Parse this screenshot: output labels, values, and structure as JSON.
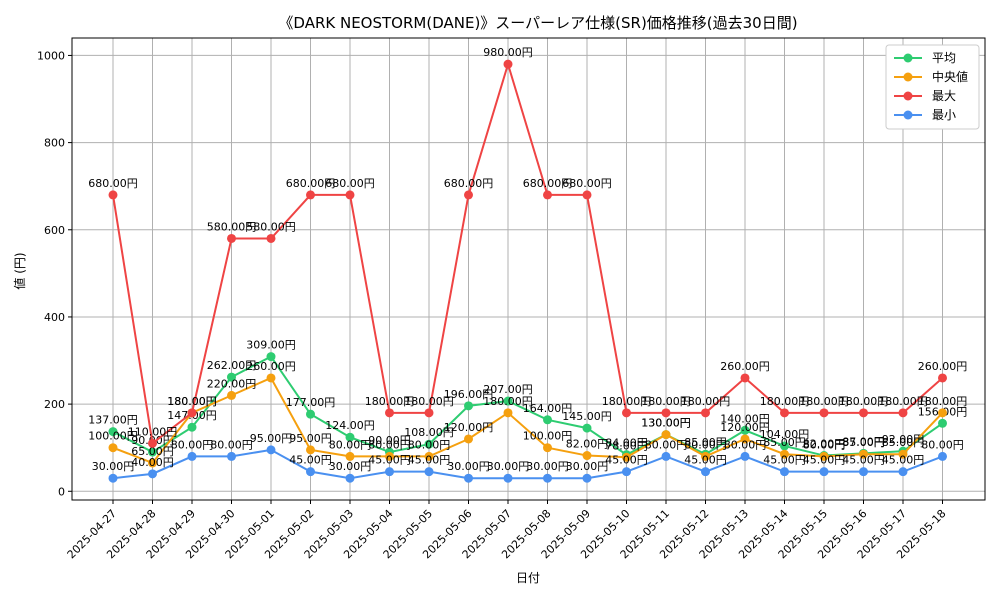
{
  "chart_data": {
    "type": "line",
    "title": "《DARK NEOSTORM(DANE)》スーパーレア仕様(SR)価格推移(過去30日間)",
    "xlabel": "日付",
    "ylabel": "値 (円)",
    "ylim": [
      -20,
      1040
    ],
    "yticks": [
      0,
      200,
      400,
      600,
      800,
      1000
    ],
    "grid": true,
    "legend_position": "top-right",
    "value_suffix": "円",
    "categories": [
      "2025-04-27",
      "2025-04-28",
      "2025-04-29",
      "2025-04-30",
      "2025-05-01",
      "2025-05-02",
      "2025-05-03",
      "2025-05-04",
      "2025-05-05",
      "2025-05-06",
      "2025-05-07",
      "2025-05-08",
      "2025-05-09",
      "2025-05-10",
      "2025-05-11",
      "2025-05-12",
      "2025-05-13",
      "2025-05-14",
      "2025-05-15",
      "2025-05-16",
      "2025-05-17",
      "2025-05-18"
    ],
    "series": [
      {
        "name": "平均",
        "color": "#2ecc71",
        "values": [
          137,
          90,
          147,
          262,
          309,
          177,
          124,
          90,
          108,
          196,
          207,
          164,
          145,
          84,
          130,
          85,
          140,
          104,
          82,
          87,
          92,
          156
        ]
      },
      {
        "name": "中央値",
        "color": "#f5a00f",
        "values": [
          100,
          65,
          180,
          220,
          260,
          95,
          80,
          80,
          80,
          120,
          180,
          100,
          82,
          78,
          130,
          80,
          120,
          85,
          80,
          85,
          85,
          180
        ]
      },
      {
        "name": "最大",
        "color": "#ef4444",
        "values": [
          680,
          110,
          180,
          580,
          580,
          680,
          680,
          180,
          180,
          680,
          980,
          680,
          680,
          180,
          180,
          180,
          260,
          180,
          180,
          180,
          180,
          260
        ]
      },
      {
        "name": "最小",
        "color": "#4a90f0",
        "values": [
          30,
          40,
          80,
          80,
          95,
          45,
          30,
          45,
          45,
          30,
          30,
          30,
          30,
          45,
          80,
          45,
          80,
          45,
          45,
          45,
          45,
          80
        ]
      }
    ]
  }
}
